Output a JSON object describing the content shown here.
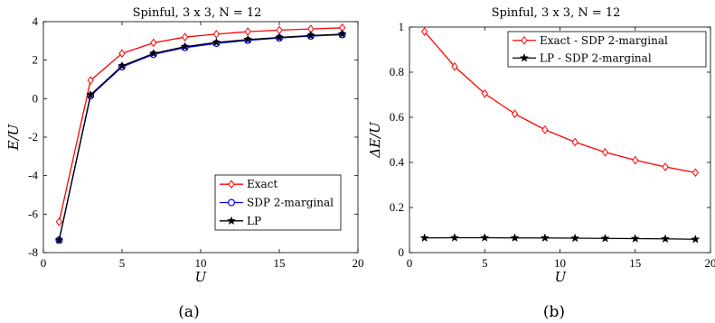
{
  "chart_data": [
    {
      "type": "line",
      "title": "Spinful, 3 x 3, N = 12",
      "xlabel": "U",
      "ylabel": "E/U",
      "caption": "(a)",
      "xlim": [
        0,
        20
      ],
      "ylim": [
        -8,
        4
      ],
      "xticks": [
        "0",
        "5",
        "10",
        "15",
        "20"
      ],
      "yticks": [
        "-8",
        "-6",
        "-4",
        "-2",
        "0",
        "2",
        "4"
      ],
      "x": [
        1,
        3,
        5,
        7,
        9,
        11,
        13,
        15,
        17,
        19
      ],
      "legend_position": "bottom-right",
      "series": [
        {
          "name": "Exact",
          "color": "#ff0000",
          "marker": "diamond",
          "values": [
            -6.4,
            0.95,
            2.35,
            2.9,
            3.2,
            3.35,
            3.48,
            3.56,
            3.62,
            3.68
          ]
        },
        {
          "name": "SDP 2-marginal",
          "color": "#0000ff",
          "marker": "circle",
          "values": [
            -7.35,
            0.15,
            1.65,
            2.3,
            2.65,
            2.87,
            3.03,
            3.15,
            3.25,
            3.32
          ]
        },
        {
          "name": "LP",
          "color": "#000000",
          "marker": "star",
          "values": [
            -7.35,
            0.2,
            1.7,
            2.35,
            2.7,
            2.92,
            3.07,
            3.18,
            3.28,
            3.35
          ]
        }
      ]
    },
    {
      "type": "line",
      "title": "Spinful, 3 x 3, N = 12",
      "xlabel": "U",
      "ylabel": "ΔE/U",
      "caption": "(b)",
      "xlim": [
        0,
        20
      ],
      "ylim": [
        0,
        1
      ],
      "xticks": [
        "0",
        "5",
        "10",
        "15",
        "20"
      ],
      "yticks": [
        "0",
        "0.2",
        "0.4",
        "0.6",
        "0.8",
        "1"
      ],
      "x": [
        1,
        3,
        5,
        7,
        9,
        11,
        13,
        15,
        17,
        19
      ],
      "legend_position": "top-right",
      "series": [
        {
          "name": "Exact - SDP 2-marginal",
          "color": "#ff0000",
          "marker": "diamond",
          "values": [
            0.98,
            0.825,
            0.705,
            0.615,
            0.545,
            0.49,
            0.445,
            0.41,
            0.38,
            0.355
          ]
        },
        {
          "name": "LP - SDP 2-marginal",
          "color": "#000000",
          "marker": "star",
          "values": [
            0.065,
            0.066,
            0.066,
            0.065,
            0.065,
            0.064,
            0.063,
            0.062,
            0.061,
            0.059
          ]
        }
      ]
    }
  ]
}
